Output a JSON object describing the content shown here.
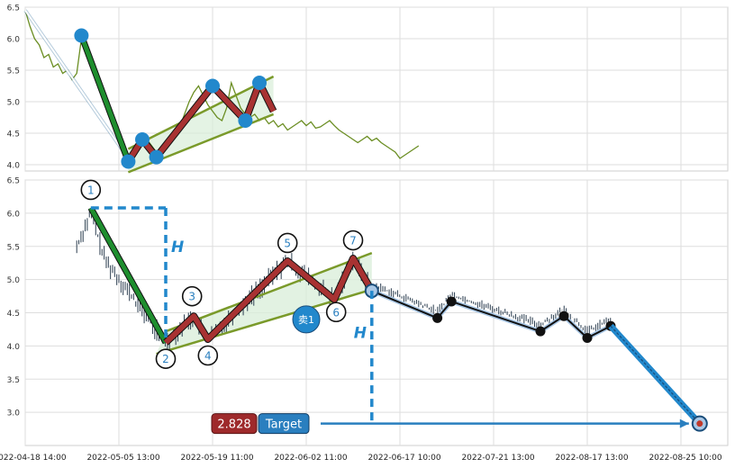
{
  "chart_data": {
    "type": "line",
    "x_ticks": [
      "2022-04-18 14:00",
      "2022-05-05 13:00",
      "2022-05-19 11:00",
      "2022-06-02 11:00",
      "2022-06-17 10:00",
      "2022-07-21 13:00",
      "2022-08-17 13:00",
      "2022-08-25 10:00"
    ],
    "top_panel": {
      "ylim": [
        3.9,
        6.5
      ],
      "yticks": [
        "4.0",
        "4.5",
        "5.0",
        "5.5",
        "6.0",
        "6.5"
      ],
      "price": [
        [
          0,
          6.45
        ],
        [
          1,
          6.2
        ],
        [
          2,
          6.0
        ],
        [
          3,
          5.9
        ],
        [
          4,
          5.7
        ],
        [
          5,
          5.75
        ],
        [
          6,
          5.55
        ],
        [
          7,
          5.6
        ],
        [
          8,
          5.45
        ],
        [
          9,
          5.5
        ],
        [
          10,
          5.35
        ],
        [
          11,
          5.45
        ],
        [
          12,
          6.0
        ],
        [
          13,
          5.85
        ],
        [
          14,
          5.6
        ],
        [
          15,
          5.4
        ],
        [
          16,
          5.2
        ],
        [
          17,
          5.0
        ],
        [
          18,
          4.8
        ],
        [
          19,
          4.6
        ],
        [
          20,
          4.4
        ],
        [
          21,
          4.25
        ],
        [
          22,
          4.1
        ],
        [
          23,
          4.2
        ],
        [
          24,
          4.3
        ],
        [
          25,
          4.35
        ],
        [
          26,
          4.4
        ],
        [
          27,
          4.3
        ],
        [
          28,
          4.2
        ],
        [
          29,
          4.15
        ],
        [
          30,
          4.25
        ],
        [
          31,
          4.35
        ],
        [
          32,
          4.5
        ],
        [
          33,
          4.6
        ],
        [
          34,
          4.8
        ],
        [
          35,
          5.0
        ],
        [
          36,
          5.15
        ],
        [
          37,
          5.25
        ],
        [
          38,
          5.1
        ],
        [
          39,
          4.95
        ],
        [
          40,
          4.85
        ],
        [
          41,
          4.75
        ],
        [
          42,
          4.7
        ],
        [
          43,
          4.9
        ],
        [
          44,
          5.3
        ],
        [
          45,
          5.1
        ],
        [
          46,
          4.9
        ],
        [
          47,
          4.8
        ],
        [
          48,
          4.75
        ],
        [
          49,
          4.8
        ],
        [
          50,
          4.7
        ],
        [
          51,
          4.75
        ],
        [
          52,
          4.65
        ],
        [
          53,
          4.7
        ],
        [
          54,
          4.6
        ],
        [
          55,
          4.65
        ],
        [
          56,
          4.55
        ],
        [
          57,
          4.6
        ],
        [
          58,
          4.65
        ],
        [
          59,
          4.7
        ],
        [
          60,
          4.62
        ],
        [
          61,
          4.68
        ],
        [
          62,
          4.58
        ],
        [
          63,
          4.6
        ],
        [
          64,
          4.65
        ],
        [
          65,
          4.7
        ],
        [
          66,
          4.62
        ],
        [
          67,
          4.55
        ],
        [
          68,
          4.5
        ],
        [
          69,
          4.45
        ],
        [
          70,
          4.4
        ],
        [
          71,
          4.35
        ],
        [
          72,
          4.4
        ],
        [
          73,
          4.45
        ],
        [
          74,
          4.38
        ],
        [
          75,
          4.42
        ],
        [
          76,
          4.35
        ],
        [
          77,
          4.3
        ],
        [
          78,
          4.25
        ],
        [
          79,
          4.2
        ],
        [
          80,
          4.1
        ],
        [
          81,
          4.15
        ],
        [
          82,
          4.2
        ],
        [
          83,
          4.25
        ],
        [
          84,
          4.3
        ]
      ],
      "pattern": [
        [
          12,
          6.05
        ],
        [
          22,
          4.05
        ],
        [
          25,
          4.4
        ],
        [
          28,
          4.12
        ],
        [
          40,
          5.25
        ],
        [
          47,
          4.7
        ],
        [
          50,
          5.3
        ],
        [
          53,
          4.85
        ]
      ],
      "channel_upper": [
        [
          22,
          4.25
        ],
        [
          53,
          5.4
        ]
      ],
      "channel_lower": [
        [
          22,
          3.88
        ],
        [
          53,
          4.8
        ]
      ]
    },
    "bottom_panel": {
      "ylim": [
        2.5,
        6.5
      ],
      "yticks": [
        "3.0",
        "3.5",
        "4.0",
        "4.5",
        "5.0",
        "5.5",
        "6.0",
        "6.5"
      ],
      "pattern_points": [
        {
          "label": "1",
          "x": 14,
          "y": 6.08
        },
        {
          "label": "2",
          "x": 30,
          "y": 4.05
        },
        {
          "label": "3",
          "x": 36,
          "y": 4.45
        },
        {
          "label": "4",
          "x": 39,
          "y": 4.1
        },
        {
          "label": "5",
          "x": 56,
          "y": 5.28
        },
        {
          "label": "6",
          "x": 66,
          "y": 4.7
        },
        {
          "label": "7",
          "x": 70,
          "y": 5.32
        }
      ],
      "channel_upper": [
        [
          30,
          4.22
        ],
        [
          74,
          5.4
        ]
      ],
      "channel_lower": [
        [
          28,
          3.88
        ],
        [
          74,
          4.85
        ]
      ],
      "forecast_path": [
        [
          74,
          4.83
        ],
        [
          88,
          4.42
        ],
        [
          91,
          4.67
        ],
        [
          110,
          4.22
        ],
        [
          115,
          4.45
        ],
        [
          120,
          4.12
        ],
        [
          125,
          4.3
        ],
        [
          144,
          2.83
        ]
      ],
      "candles_x_range": [
        11,
        75
      ],
      "sell_marker": {
        "label": "卖1",
        "x": 60,
        "y": 4.4
      },
      "H_label": "H",
      "target_value": "2.828",
      "target_label": "Target",
      "target_price": 2.828
    },
    "colors": {
      "price_line": "#6b8e23",
      "channel": "#7a9a2a",
      "channel_fill": "#d8eed8",
      "pattern_red": "#a83232",
      "pattern_green": "#1e8e2e",
      "marker_blue": "#2288cc",
      "dashed_blue": "#2288cc",
      "target_box_red": "#9e2a2b",
      "target_box_blue": "#2a7fbf",
      "candle": "#2c3e50"
    }
  }
}
